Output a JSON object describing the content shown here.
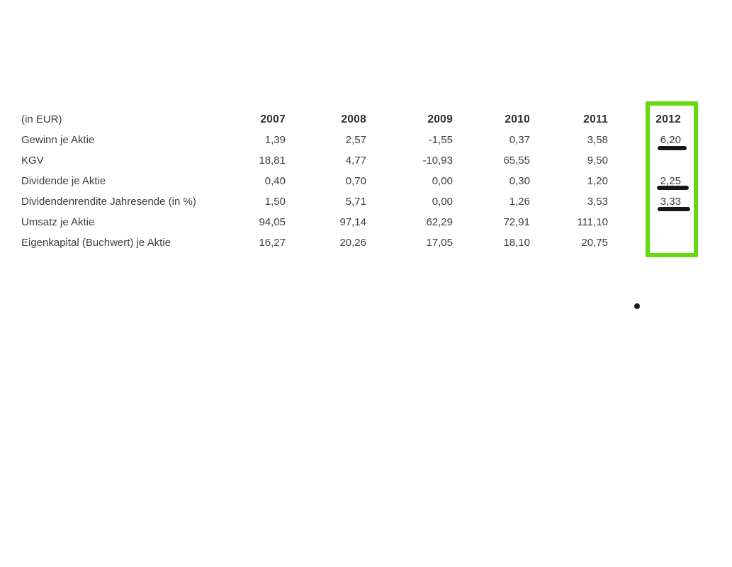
{
  "table": {
    "unit_label": "(in EUR)",
    "years": [
      "2007",
      "2008",
      "2009",
      "2010",
      "2011",
      "2012"
    ],
    "rows": [
      {
        "label": "Gewinn je Aktie",
        "values": [
          "1,39",
          "2,57",
          "-1,55",
          "0,37",
          "3,58",
          "6,20"
        ]
      },
      {
        "label": "KGV",
        "values": [
          "18,81",
          "4,77",
          "-10,93",
          "65,55",
          "9,50",
          ""
        ]
      },
      {
        "label": "Dividende je Aktie",
        "values": [
          "0,40",
          "0,70",
          "0,00",
          "0,30",
          "1,20",
          "2,25"
        ]
      },
      {
        "label": "Dividendenrendite Jahresende (in %)",
        "values": [
          "1,50",
          "5,71",
          "0,00",
          "1,26",
          "3,53",
          "3,33"
        ]
      },
      {
        "label": "Umsatz je Aktie",
        "values": [
          "94,05",
          "97,14",
          "62,29",
          "72,91",
          "111,10",
          ""
        ]
      },
      {
        "label": "Eigenkapital (Buchwert) je Aktie",
        "values": [
          "16,27",
          "20,26",
          "17,05",
          "18,10",
          "20,75",
          ""
        ]
      }
    ]
  },
  "annotations": {
    "highlighted_year": "2012",
    "highlight_color": "#66d90e",
    "marker_color": "#161616",
    "underlined_values": [
      "6,20",
      "2,25",
      "3,33"
    ]
  }
}
